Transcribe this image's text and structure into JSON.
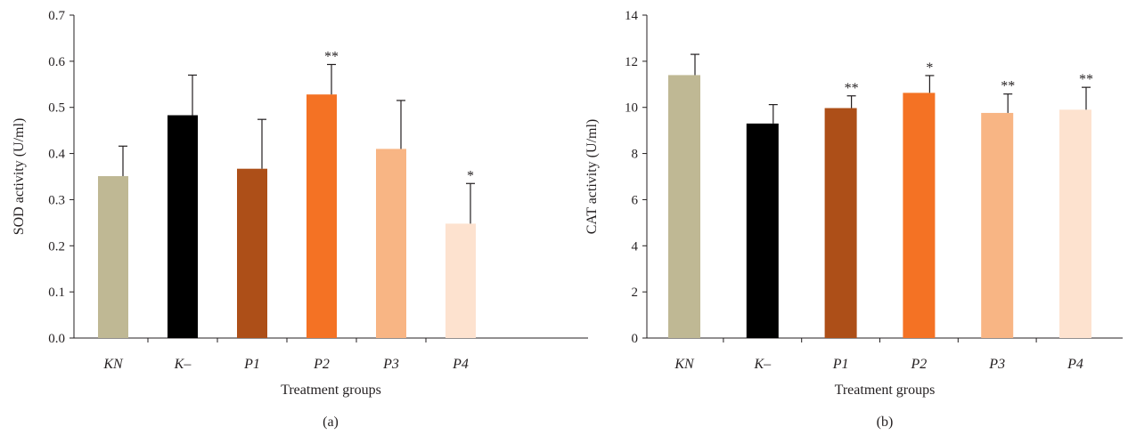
{
  "chart_data": [
    {
      "type": "bar",
      "panel_label": "(a)",
      "xlabel": "Treatment groups",
      "ylabel": "SOD activity (U/ml)",
      "ylim": [
        0,
        0.7
      ],
      "yticks": [
        "0.0",
        "0.1",
        "0.2",
        "0.3",
        "0.4",
        "0.5",
        "0.6",
        "0.7"
      ],
      "grid": false,
      "categories": [
        "KN",
        "K–",
        "P1",
        "P2",
        "P3",
        "P4"
      ],
      "values": [
        0.351,
        0.483,
        0.367,
        0.528,
        0.41,
        0.248
      ],
      "errors": [
        0.065,
        0.087,
        0.107,
        0.065,
        0.105,
        0.087
      ],
      "annotations": [
        "",
        "",
        "",
        "**",
        "",
        "*"
      ],
      "colors": [
        "#bfb894",
        "#000000",
        "#ad4f18",
        "#f47224",
        "#f8b584",
        "#fde2cf"
      ]
    },
    {
      "type": "bar",
      "panel_label": "(b)",
      "xlabel": "Treatment groups",
      "ylabel": "CAT activity (U/ml)",
      "ylim": [
        0,
        14
      ],
      "yticks": [
        "0",
        "2",
        "4",
        "6",
        "8",
        "10",
        "12",
        "14"
      ],
      "grid": false,
      "categories": [
        "KN",
        "K–",
        "P1",
        "P2",
        "P3",
        "P4"
      ],
      "values": [
        11.4,
        9.3,
        9.97,
        10.63,
        9.76,
        9.9
      ],
      "errors": [
        0.9,
        0.82,
        0.53,
        0.75,
        0.82,
        0.97
      ],
      "annotations": [
        "",
        "",
        "**",
        "*",
        "**",
        "**"
      ],
      "colors": [
        "#bfb894",
        "#000000",
        "#ad4f18",
        "#f47224",
        "#f8b584",
        "#fde2cf"
      ]
    }
  ]
}
